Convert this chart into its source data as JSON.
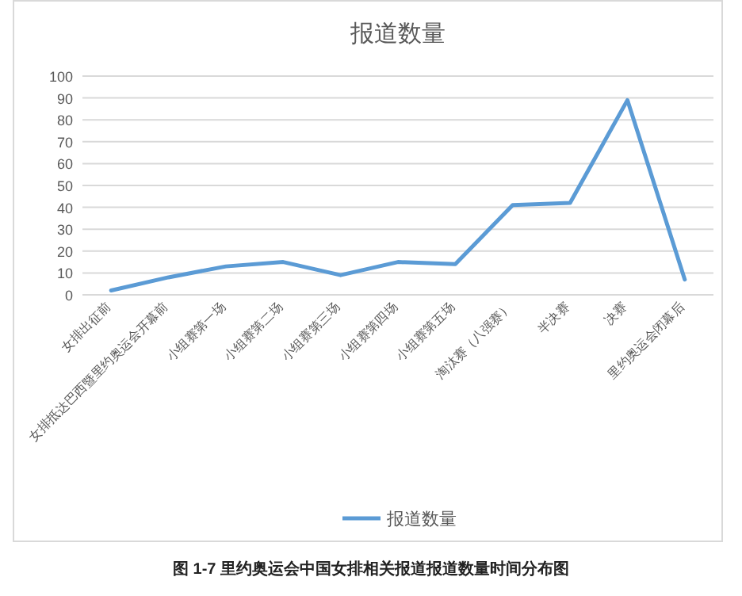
{
  "chart_data": {
    "type": "line",
    "title": "报道数量",
    "categories": [
      "女排出征前",
      "女排抵达巴西暨里约奥运会开幕前",
      "小组赛第一场",
      "小组赛第二场",
      "小组赛第三场",
      "小组赛第四场",
      "小组赛第五场",
      "淘汰赛（八强赛）",
      "半决赛",
      "决赛",
      "里约奥运会闭幕后"
    ],
    "series": [
      {
        "name": "报道数量",
        "color": "#5b9bd5",
        "values": [
          2,
          8,
          13,
          15,
          9,
          15,
          14,
          41,
          42,
          89,
          7
        ]
      }
    ],
    "ylim": [
      0,
      100
    ],
    "yticks": [
      0,
      10,
      20,
      30,
      40,
      50,
      60,
      70,
      80,
      90,
      100
    ],
    "grid": "y",
    "legend": "bottom",
    "annotations": [
      "图 1-7 里约奥运会中国女排相关报道报道数量时间分布图"
    ]
  }
}
